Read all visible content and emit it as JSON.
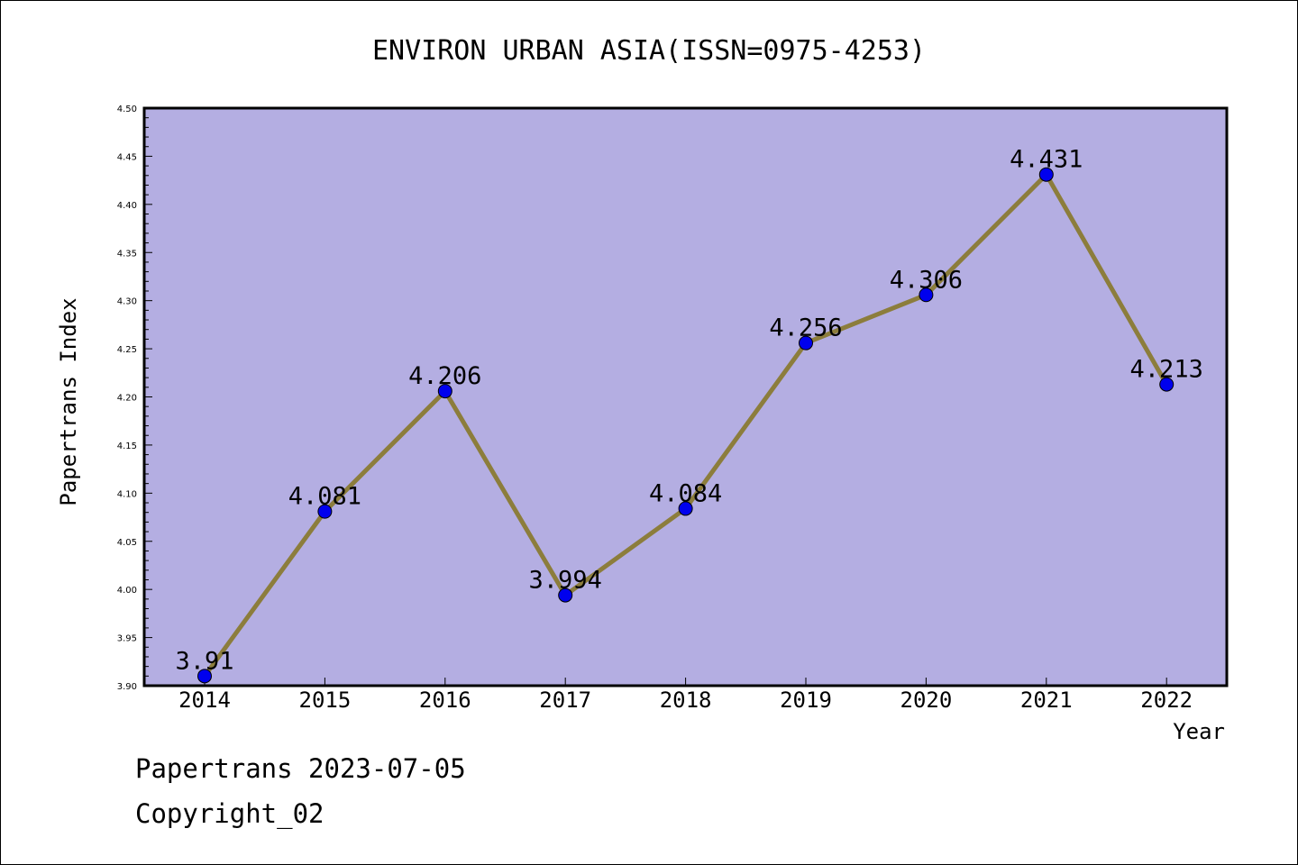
{
  "chart_data": {
    "type": "line",
    "title": "ENVIRON URBAN ASIA(ISSN=0975-4253)",
    "xlabel": "Year",
    "ylabel": "Papertrans Index",
    "categories": [
      "2014",
      "2015",
      "2016",
      "2017",
      "2018",
      "2019",
      "2020",
      "2021",
      "2022"
    ],
    "values": [
      3.91,
      4.081,
      4.206,
      3.994,
      4.084,
      4.256,
      4.306,
      4.431,
      4.213
    ],
    "data_labels": [
      "3.91",
      "4.081",
      "4.206",
      "3.994",
      "4.084",
      "4.256",
      "4.306",
      "4.431",
      "4.213"
    ],
    "ylim": [
      3.9,
      4.5
    ],
    "yticks": [
      "3.90",
      "3.95",
      "4.00",
      "4.05",
      "4.10",
      "4.15",
      "4.20",
      "4.25",
      "4.30",
      "4.35",
      "4.40",
      "4.45",
      "4.50"
    ],
    "grid": false,
    "colors": {
      "plot_background": "#b4aee2",
      "line": "#8c7d3c",
      "marker": "#0000ee"
    }
  },
  "footer": {
    "date_text": "Papertrans 2023-07-05",
    "copyright_text": "Copyright_02"
  }
}
